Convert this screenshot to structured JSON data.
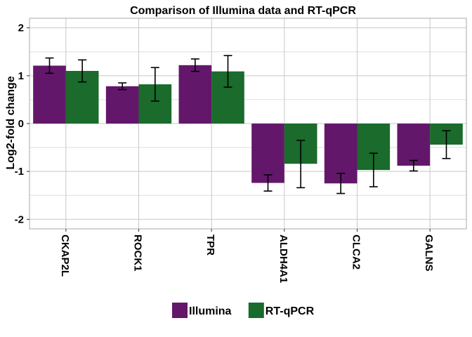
{
  "chart_data": {
    "type": "bar",
    "title": "Comparison of Illumina data and RT-qPCR",
    "xlabel": "",
    "ylabel": "Log2-fold change",
    "ylim": [
      -2.2,
      2.2
    ],
    "yticks": [
      "-2",
      "-1",
      "0",
      "1",
      "2"
    ],
    "ytick_values": [
      -2,
      -1,
      0,
      1,
      2
    ],
    "categories": [
      "CKAP2L",
      "ROCK1",
      "TPR",
      "ALDH4A1",
      "CLCA2",
      "GALNS"
    ],
    "series": [
      {
        "name": "Illumina",
        "color": "#63176b",
        "values": [
          1.21,
          0.78,
          1.22,
          -1.24,
          -1.25,
          -0.88
        ],
        "error_low": [
          1.05,
          0.71,
          1.09,
          -1.41,
          -1.46,
          -0.99
        ],
        "error_high": [
          1.37,
          0.85,
          1.35,
          -1.07,
          -1.04,
          -0.77
        ]
      },
      {
        "name": "RT-qPCR",
        "color": "#1a6b2c",
        "values": [
          1.1,
          0.82,
          1.09,
          -0.84,
          -0.97,
          -0.44
        ],
        "error_low": [
          0.87,
          0.47,
          0.76,
          -1.34,
          -1.32,
          -0.73
        ],
        "error_high": [
          1.33,
          1.17,
          1.42,
          -0.35,
          -0.62,
          -0.15
        ]
      }
    ],
    "grid": true,
    "legend_position": "bottom"
  }
}
